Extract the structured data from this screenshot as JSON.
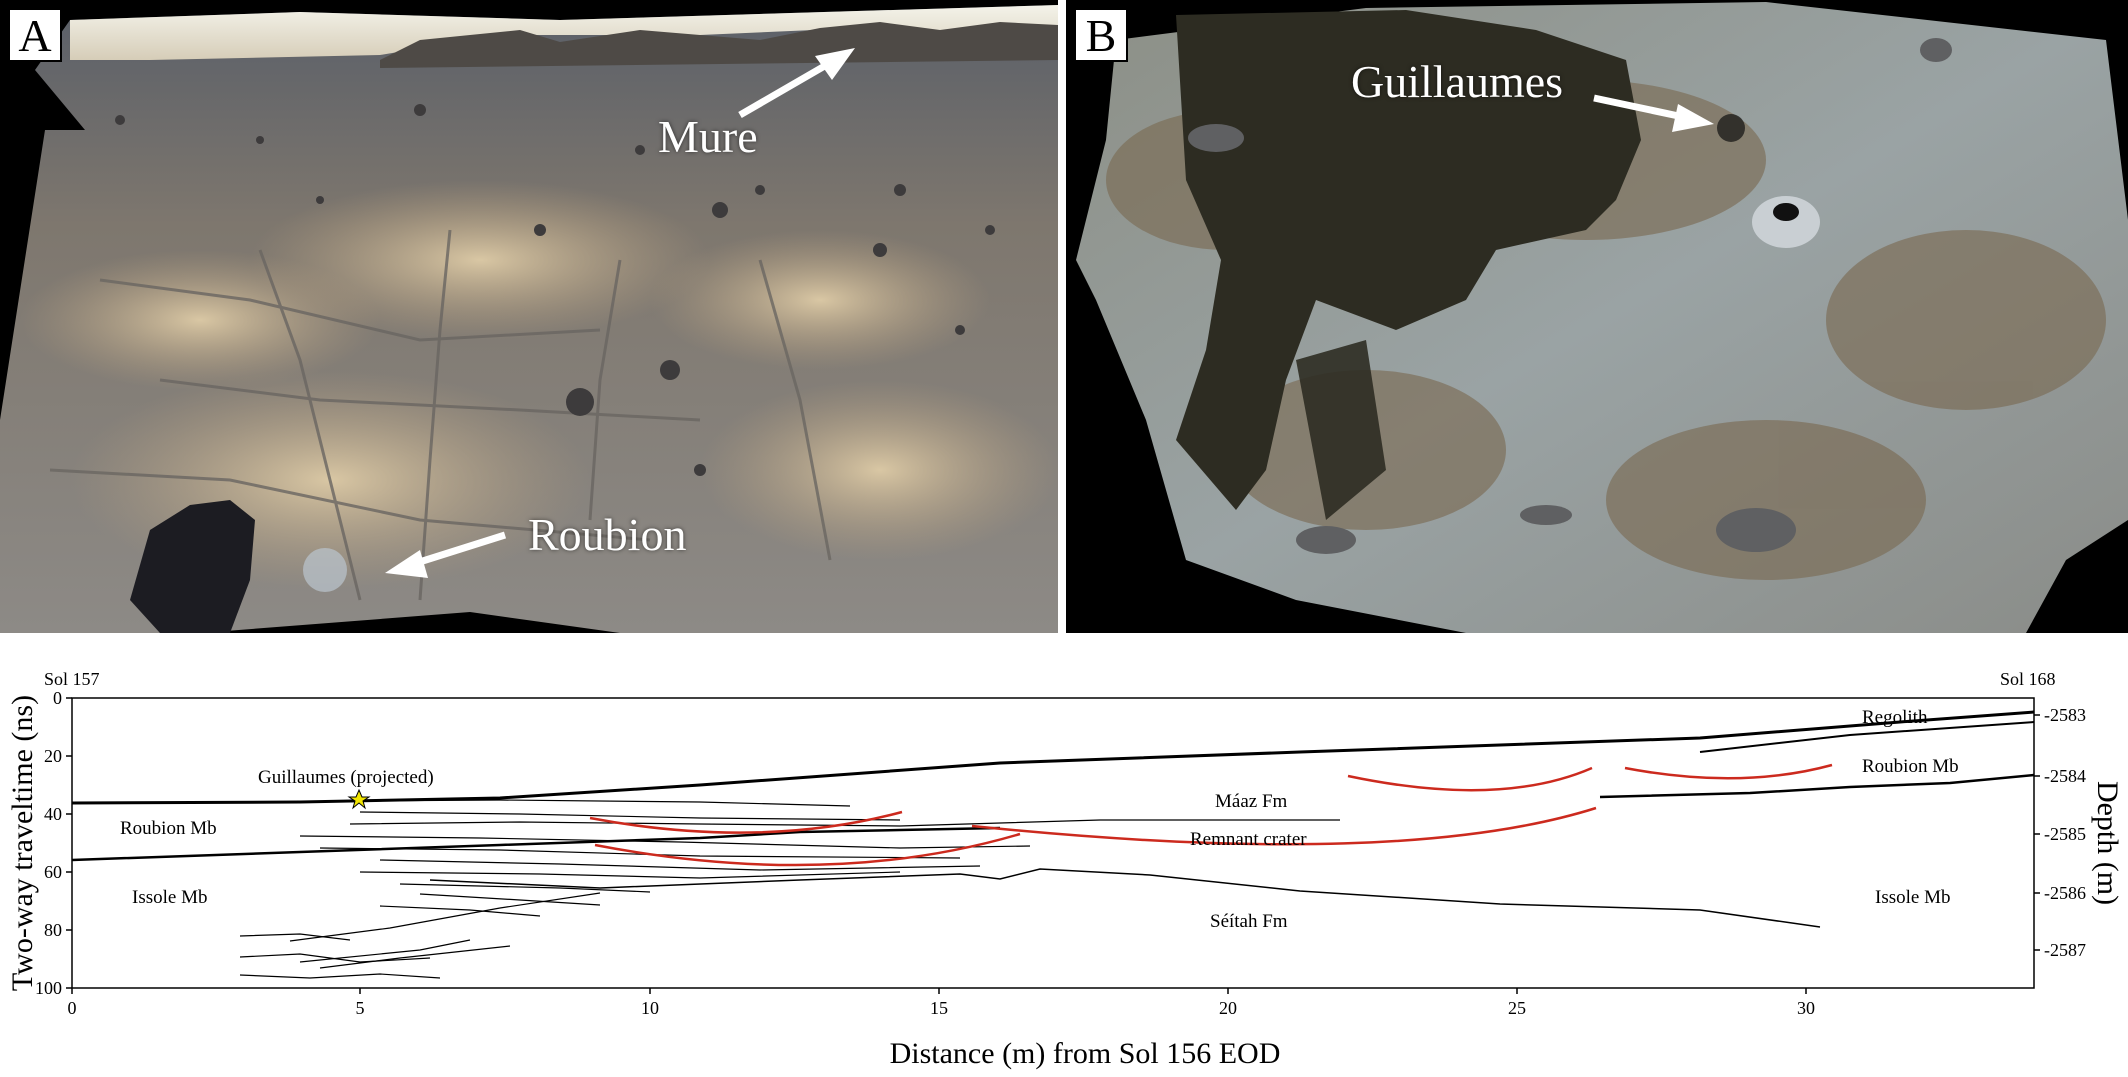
{
  "panel_a": {
    "letter": "A",
    "labels": {
      "mure": "Mure",
      "roubion": "Roubion"
    }
  },
  "panel_b": {
    "letter": "B",
    "labels": {
      "guillaumes": "Guillaumes"
    }
  },
  "radargram": {
    "sol_start": "Sol 157",
    "sol_end": "Sol 168",
    "xlabel": "Distance (m) from Sol 156 EOD",
    "ylabel_left": "Two-way traveltime (ns)",
    "ylabel_right": "Depth (m)",
    "x_ticks": [
      "0",
      "5",
      "10",
      "15",
      "20",
      "25",
      "30"
    ],
    "y_ticks": [
      "0",
      "20",
      "40",
      "60",
      "80",
      "100"
    ],
    "depth_ticks": [
      "-2583",
      "-2584",
      "-2585",
      "-2586",
      "-2587"
    ],
    "x_range": [
      0,
      34
    ],
    "y_range": [
      0,
      100
    ],
    "annotations": {
      "guillaumes": "Guillaumes (projected)",
      "roubion_left": "Roubion Mb",
      "issole_left": "Issole Mb",
      "maaz": "Máaz Fm",
      "remnant": "Remnant crater",
      "seitah": "Séítah Fm",
      "regolith": "Regolith",
      "roubion_right": "Roubion Mb",
      "issole_right": "Issole Mb"
    }
  },
  "colors": {
    "reflector": "#000000",
    "crater_arc": "#cc2a1e",
    "star": "#f2e500"
  }
}
